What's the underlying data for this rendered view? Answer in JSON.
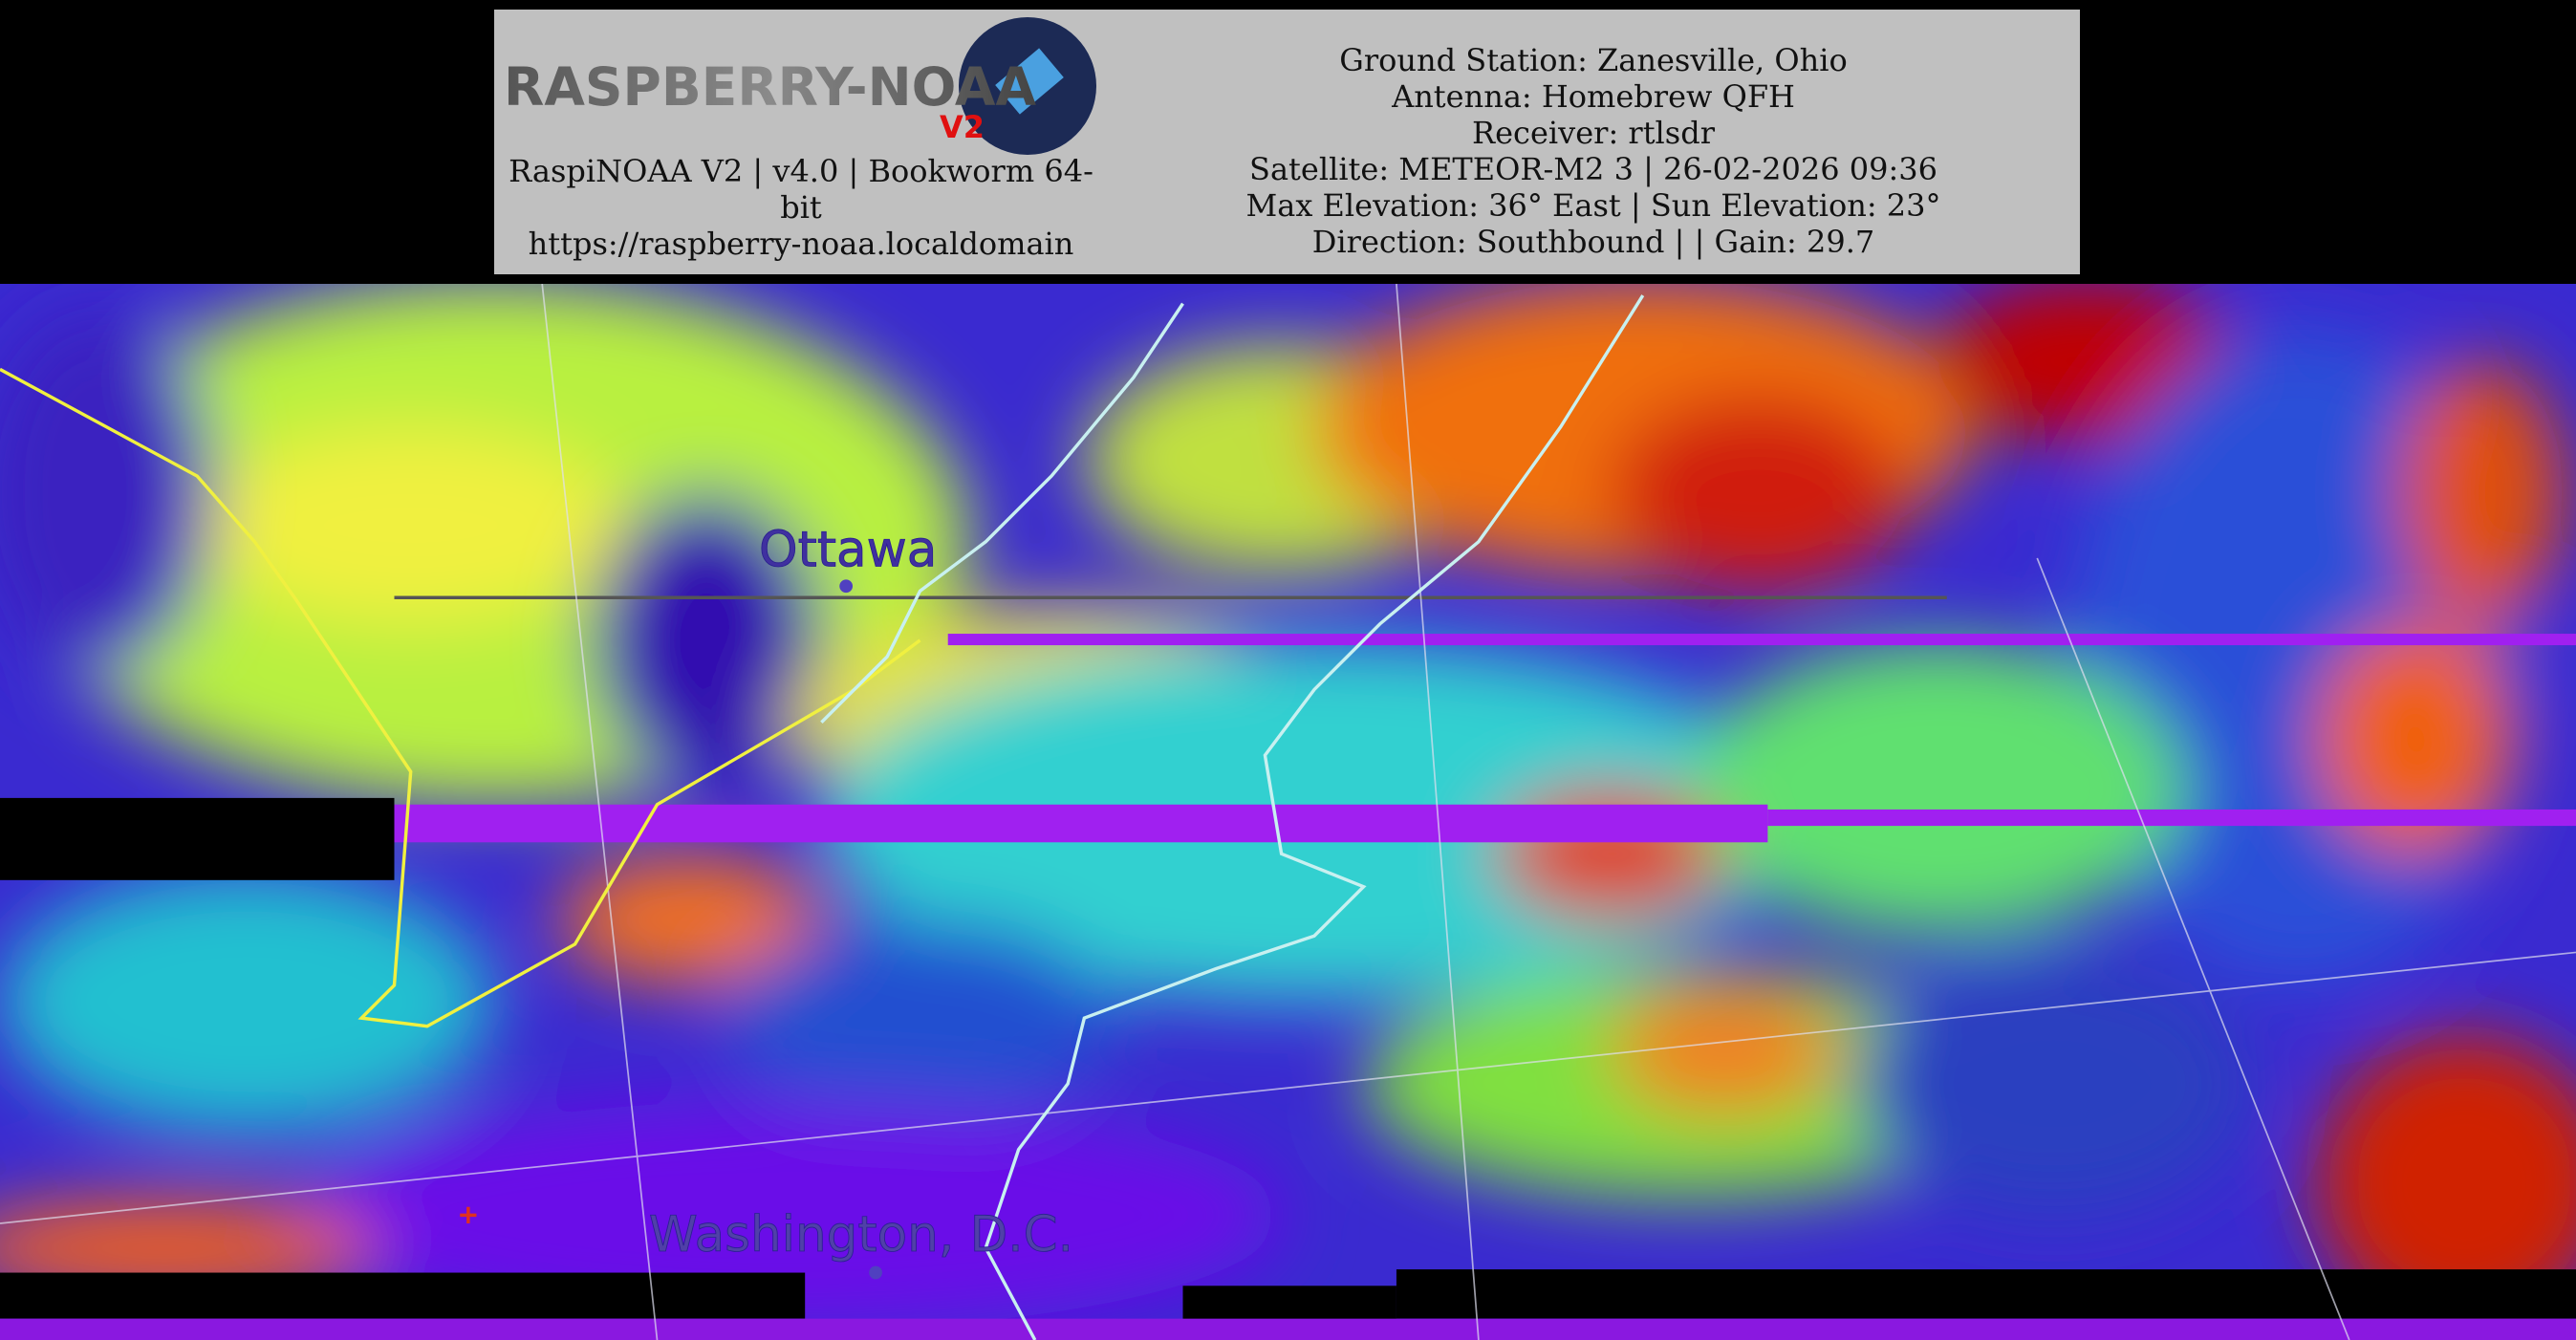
{
  "header": {
    "logo": {
      "text": "RASPBERRY-NOAA",
      "badge": "V2"
    },
    "info_left": [
      "RaspiNOAA V2 | v4.0 | Bookworm 64-bit",
      "https://raspberry-noaa.localdomain"
    ],
    "info_right": [
      "Ground Station: Zanesville, Ohio",
      "Antenna: Homebrew QFH",
      "Receiver: rtlsdr",
      "Satellite: METEOR-M2 3 | 26-02-2026 09:36",
      "Max Elevation: 36° East | Sun Elevation: 23°",
      "Direction: Southbound | | Gain: 29.7"
    ]
  },
  "map": {
    "labels": [
      "Ottawa",
      "Washington, D.C."
    ]
  }
}
